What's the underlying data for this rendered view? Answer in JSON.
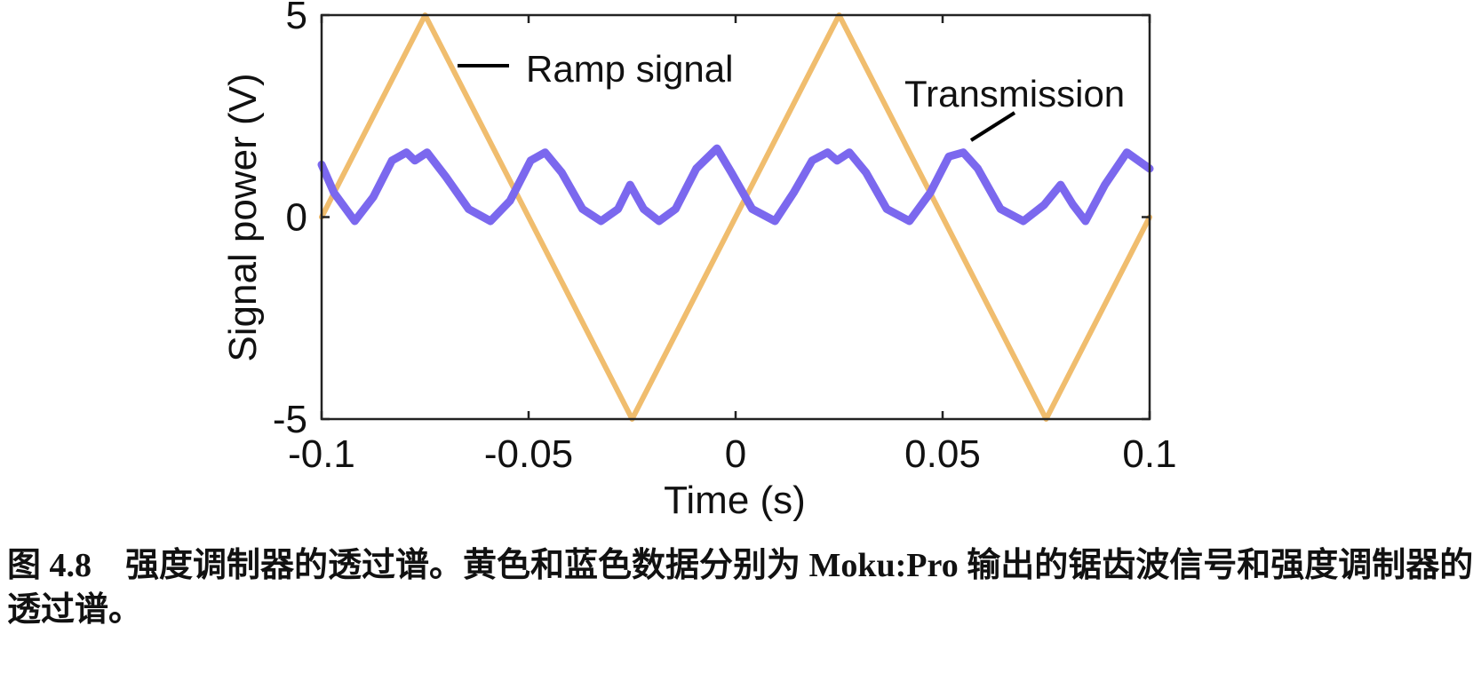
{
  "chart_data": {
    "type": "line",
    "xlabel": "Time (s)",
    "ylabel": "Signal power (V)",
    "xlim": [
      -0.1,
      0.1
    ],
    "ylim": [
      -5,
      5
    ],
    "x_ticks": [
      -0.1,
      -0.05,
      0,
      0.05,
      0.1
    ],
    "x_tick_labels": [
      "-0.1",
      "-0.05",
      "0",
      "0.05",
      "0.1"
    ],
    "y_ticks": [
      -5,
      0,
      5
    ],
    "y_tick_labels": [
      "-5",
      "0",
      "5"
    ],
    "grid": false,
    "series": [
      {
        "name": "Ramp signal",
        "color": "#f0bd6e",
        "x": [
          -0.1,
          -0.075,
          -0.025,
          0.025,
          0.075,
          0.1
        ],
        "y": [
          0,
          5,
          -5,
          5,
          -5,
          0
        ]
      },
      {
        "name": "Transmission",
        "color": "#7b68ee",
        "x": [
          -0.1,
          -0.097,
          -0.092,
          -0.0875,
          -0.083,
          -0.0795,
          -0.0775,
          -0.0745,
          -0.07,
          -0.0645,
          -0.0592,
          -0.0545,
          -0.0495,
          -0.046,
          -0.042,
          -0.037,
          -0.0325,
          -0.0284,
          -0.0255,
          -0.0222,
          -0.0185,
          -0.0145,
          -0.0095,
          -0.0045,
          -0.001,
          0.004,
          0.0095,
          0.014,
          0.0185,
          0.0222,
          0.0245,
          0.0275,
          0.0315,
          0.0365,
          0.042,
          0.047,
          0.0515,
          0.055,
          0.0585,
          0.064,
          0.0695,
          0.0745,
          0.0785,
          0.0815,
          0.0845,
          0.0892,
          0.0945,
          0.1
        ],
        "y": [
          1.3,
          0.6,
          -0.1,
          0.5,
          1.4,
          1.6,
          1.4,
          1.6,
          1.0,
          0.2,
          -0.1,
          0.4,
          1.4,
          1.6,
          1.1,
          0.2,
          -0.1,
          0.2,
          0.8,
          0.2,
          -0.1,
          0.2,
          1.2,
          1.7,
          1.1,
          0.2,
          -0.1,
          0.6,
          1.4,
          1.6,
          1.4,
          1.6,
          1.1,
          0.2,
          -0.1,
          0.6,
          1.5,
          1.6,
          1.2,
          0.2,
          -0.1,
          0.3,
          0.8,
          0.3,
          -0.1,
          0.8,
          1.6,
          1.2
        ]
      }
    ],
    "annotations": [
      {
        "text": "Ramp signal",
        "series": "Ramp signal"
      },
      {
        "text": "Transmission",
        "series": "Transmission"
      }
    ]
  },
  "caption": {
    "figure_number": "图 4.8",
    "text": "强度调制器的透过谱。黄色和蓝色数据分别为 Moku:Pro 输出的锯齿波信号和强度调制器的透过谱。"
  }
}
